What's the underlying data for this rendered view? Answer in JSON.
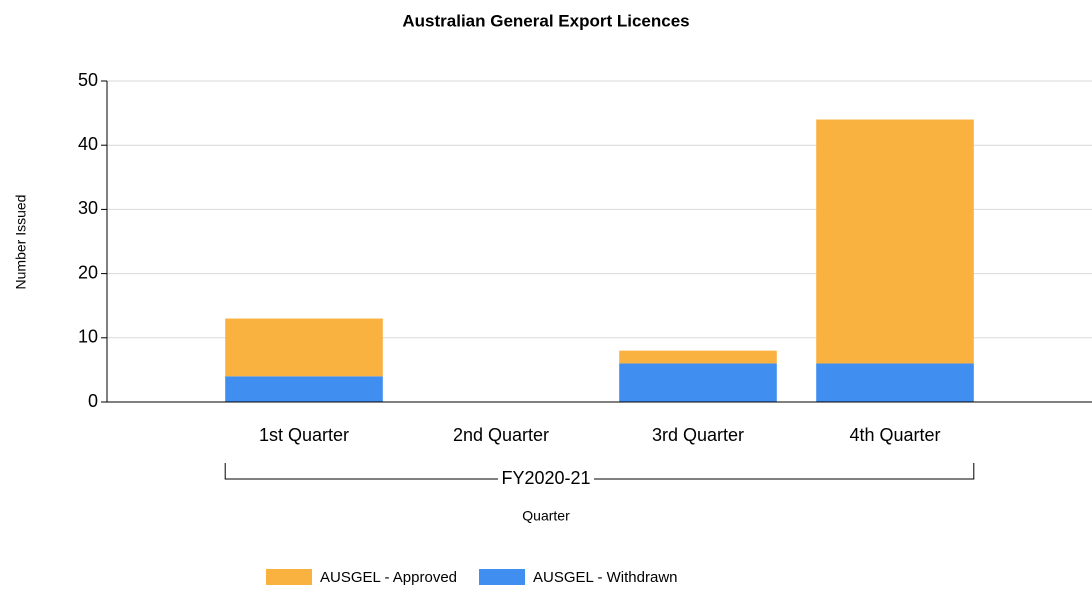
{
  "chart_data": {
    "type": "stacked_bar",
    "title": "Australian General Export Licences",
    "categories": [
      "1st Quarter",
      "2nd Quarter",
      "3rd Quarter",
      "4th Quarter"
    ],
    "group_label": "FY2020-21",
    "x_label": "Quarter",
    "y_label": "Number Issued",
    "series": [
      {
        "name": "AUSGEL - Approved",
        "color": "#f9b240",
        "values": [
          9,
          0,
          2,
          38
        ]
      },
      {
        "name": "AUSGEL - Withdrawn",
        "color": "#3f8ef0",
        "values": [
          4,
          0,
          6,
          6
        ]
      }
    ],
    "ylim": [
      0,
      50
    ],
    "yticks": [
      0,
      10,
      20,
      30,
      40,
      50
    ],
    "grid": true,
    "legend": "bottom"
  }
}
